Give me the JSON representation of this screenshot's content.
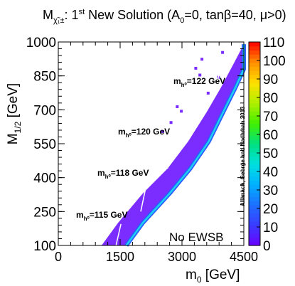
{
  "chart_data": {
    "type": "heatmap",
    "title": {
      "prefix": "M",
      "sub": "χ̃₁±",
      "colon": ":",
      "ordinal": "1",
      "ordinal_sup": "st",
      "rest_a": " New Solution (A",
      "a_sub": "0",
      "rest_b": "=0, tanβ=40, μ>0)"
    },
    "xlabel": {
      "main": "m",
      "sub": "0",
      "unit": " [GeV]"
    },
    "ylabel": {
      "main": "M",
      "sub": "1/2",
      "unit": " [GeV]"
    },
    "xlim": [
      0,
      4500
    ],
    "ylim": [
      100,
      1000
    ],
    "x_ticks": [
      "0",
      "1500",
      "3000",
      "4500"
    ],
    "y_ticks": [
      "100",
      "250",
      "400",
      "550",
      "700",
      "850",
      "1000"
    ],
    "colorbar": {
      "range": [
        0,
        110
      ],
      "ticks": [
        "0",
        "10",
        "20",
        "30",
        "40",
        "50",
        "60",
        "70",
        "80",
        "90",
        "100",
        "110"
      ]
    },
    "region_label": "No EWSB",
    "credit": "Allanach, George and Nachman 2013",
    "higgs_contours": [
      {
        "label": "m",
        "label_sub": "h⁰",
        "value": "=115 GeV",
        "points": [
          [
            1400,
            100
          ],
          [
            1520,
            195
          ]
        ]
      },
      {
        "label": "m",
        "label_sub": "h⁰",
        "value": "=118 GeV",
        "points": [
          [
            2000,
            250
          ],
          [
            2150,
            380
          ]
        ]
      },
      {
        "label": "m",
        "label_sub": "h⁰",
        "value": "=120 GeV",
        "points": [
          [
            2650,
            440
          ],
          [
            2850,
            640
          ]
        ]
      },
      {
        "label": "m",
        "label_sub": "h⁰",
        "value": "=122 GeV",
        "points": [
          [
            3750,
            760
          ],
          [
            4000,
            920
          ]
        ]
      }
    ],
    "band": {
      "lower_edge": [
        [
          1050,
          100
        ],
        [
          1450,
          200
        ],
        [
          2050,
          330
        ],
        [
          2650,
          440
        ],
        [
          3150,
          560
        ],
        [
          3600,
          690
        ],
        [
          3950,
          800
        ],
        [
          4300,
          920
        ],
        [
          4500,
          990
        ]
      ],
      "upper_edge": [
        [
          1650,
          100
        ],
        [
          2050,
          200
        ],
        [
          2700,
          330
        ],
        [
          3200,
          440
        ],
        [
          3650,
          560
        ],
        [
          4000,
          690
        ],
        [
          4300,
          800
        ],
        [
          4500,
          880
        ],
        [
          4500,
          990
        ]
      ]
    },
    "grid": false,
    "legend": "colorbar-right"
  }
}
